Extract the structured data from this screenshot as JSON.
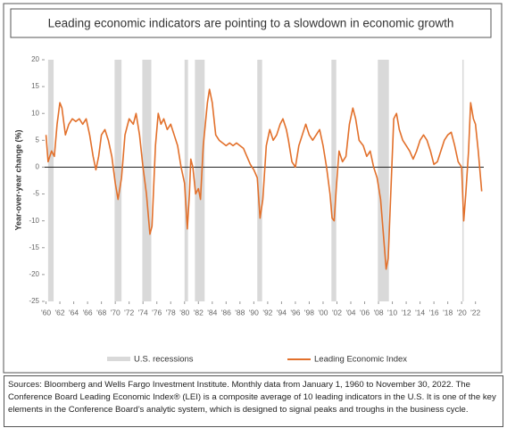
{
  "chart_data": {
    "type": "line",
    "title": "Leading economic indicators are pointing to a slowdown in economic growth",
    "y_label": "Year-over-year change (%)",
    "xlim": [
      1959.8,
      2023.2
    ],
    "ylim": [
      -25,
      20
    ],
    "yticks": [
      20,
      15,
      10,
      5,
      0,
      -5,
      -10,
      -15,
      -20,
      -25
    ],
    "xticks": [
      {
        "value": 1960,
        "label": "'60"
      },
      {
        "value": 1962,
        "label": "'62"
      },
      {
        "value": 1964,
        "label": "'64"
      },
      {
        "value": 1966,
        "label": "'66"
      },
      {
        "value": 1968,
        "label": "'68"
      },
      {
        "value": 1970,
        "label": "'70"
      },
      {
        "value": 1972,
        "label": "'72"
      },
      {
        "value": 1974,
        "label": "'74"
      },
      {
        "value": 1976,
        "label": "'76"
      },
      {
        "value": 1978,
        "label": "'78"
      },
      {
        "value": 1980,
        "label": "'80"
      },
      {
        "value": 1982,
        "label": "'82"
      },
      {
        "value": 1984,
        "label": "'84"
      },
      {
        "value": 1986,
        "label": "'86"
      },
      {
        "value": 1988,
        "label": "'88"
      },
      {
        "value": 1990,
        "label": "'90"
      },
      {
        "value": 1992,
        "label": "'92"
      },
      {
        "value": 1994,
        "label": "'94"
      },
      {
        "value": 1996,
        "label": "'96"
      },
      {
        "value": 1998,
        "label": "'98"
      },
      {
        "value": 2000,
        "label": "'00"
      },
      {
        "value": 2002,
        "label": "'02"
      },
      {
        "value": 2004,
        "label": "'04"
      },
      {
        "value": 2006,
        "label": "'06"
      },
      {
        "value": 2008,
        "label": "'08"
      },
      {
        "value": 2010,
        "label": "'10"
      },
      {
        "value": 2012,
        "label": "'12"
      },
      {
        "value": 2014,
        "label": "'14"
      },
      {
        "value": 2016,
        "label": "'16"
      },
      {
        "value": 2018,
        "label": "'18"
      },
      {
        "value": 2020,
        "label": "'20"
      },
      {
        "value": 2022,
        "label": "'22"
      }
    ],
    "recessions": {
      "name": "U.S. recessions",
      "color": "#d9d9d9",
      "spans": [
        [
          1960.3,
          1961.1
        ],
        [
          1969.9,
          1970.9
        ],
        [
          1973.9,
          1975.2
        ],
        [
          1980.0,
          1980.5
        ],
        [
          1981.5,
          1982.9
        ],
        [
          1990.5,
          1991.2
        ],
        [
          2001.2,
          2001.9
        ],
        [
          2007.9,
          2009.5
        ],
        [
          2020.1,
          2020.3
        ]
      ]
    },
    "x": [
      1960.0,
      1960.3,
      1960.8,
      1961.2,
      1961.6,
      1962.0,
      1962.3,
      1962.8,
      1963.3,
      1963.8,
      1964.3,
      1964.8,
      1965.3,
      1965.8,
      1966.3,
      1966.8,
      1967.2,
      1967.6,
      1968.0,
      1968.5,
      1969.0,
      1969.5,
      1970.0,
      1970.4,
      1970.9,
      1971.4,
      1972.0,
      1972.6,
      1973.0,
      1973.5,
      1974.0,
      1974.5,
      1975.0,
      1975.3,
      1975.8,
      1976.2,
      1976.6,
      1977.0,
      1977.5,
      1978.0,
      1978.5,
      1979.0,
      1979.5,
      1980.0,
      1980.4,
      1980.7,
      1980.9,
      1981.2,
      1981.6,
      1982.0,
      1982.3,
      1982.7,
      1983.3,
      1983.6,
      1984.0,
      1984.5,
      1985.0,
      1985.5,
      1986.0,
      1986.5,
      1987.0,
      1987.5,
      1988.0,
      1988.5,
      1989.0,
      1989.5,
      1990.0,
      1990.5,
      1990.9,
      1991.3,
      1991.8,
      1992.3,
      1992.8,
      1993.3,
      1993.8,
      1994.2,
      1994.7,
      1995.0,
      1995.5,
      1996.0,
      1996.5,
      1997.0,
      1997.5,
      1998.0,
      1998.5,
      1999.0,
      1999.5,
      2000.0,
      2000.5,
      2001.0,
      2001.3,
      2001.6,
      2001.9,
      2002.3,
      2002.8,
      2003.3,
      2003.8,
      2004.3,
      2004.7,
      2005.2,
      2005.8,
      2006.3,
      2006.8,
      2007.3,
      2007.8,
      2008.3,
      2008.8,
      2009.1,
      2009.4,
      2009.8,
      2010.2,
      2010.6,
      2011.0,
      2011.5,
      2012.0,
      2012.5,
      2013.0,
      2013.5,
      2014.0,
      2014.5,
      2015.0,
      2015.5,
      2016.0,
      2016.5,
      2017.0,
      2017.5,
      2018.0,
      2018.5,
      2019.0,
      2019.5,
      2020.0,
      2020.3,
      2020.6,
      2021.0,
      2021.3,
      2021.7,
      2022.0,
      2022.4,
      2022.9
    ],
    "series": [
      {
        "name": "Leading Economic Index",
        "color": "#e2702b",
        "values": [
          6,
          1,
          3,
          2,
          8,
          12,
          11,
          6,
          8,
          9,
          8.5,
          9,
          8,
          9,
          6,
          2,
          -0.5,
          2,
          6,
          7,
          5,
          2,
          -3,
          -6,
          -2,
          6,
          9,
          8,
          10,
          6,
          0,
          -5,
          -12.5,
          -11,
          4,
          10,
          8,
          9,
          7,
          8,
          6,
          4,
          0,
          -3,
          -11.5,
          -5,
          1.5,
          0,
          -5,
          -4,
          -6,
          4,
          12,
          14.5,
          12,
          6,
          5,
          4.5,
          4,
          4.5,
          4,
          4.5,
          4,
          3.5,
          2,
          0.5,
          -0.5,
          -2,
          -9.5,
          -6,
          4,
          7,
          5,
          6,
          8,
          9,
          7,
          5,
          1,
          0,
          4,
          6,
          8,
          6,
          5,
          6,
          7,
          4,
          0,
          -5,
          -9.5,
          -10,
          -4,
          3,
          1,
          2,
          8,
          11,
          9,
          5,
          4,
          2,
          3,
          0,
          -2,
          -6,
          -14,
          -19,
          -17,
          -4,
          9,
          10,
          7,
          5,
          4,
          3,
          1.5,
          3,
          5,
          6,
          5,
          3,
          0.5,
          1,
          3,
          5,
          6,
          6.5,
          4,
          1,
          0,
          -10,
          -5,
          3,
          12,
          9,
          8,
          3,
          -4.5
        ]
      }
    ]
  },
  "source": "Sources: Bloomberg and Wells Fargo Investment Institute. Monthly data from January 1, 1960 to November 30, 2022. The Conference Board Leading Economic Index® (LEI) is a composite average of 10 leading indicators in the U.S. It is one of the key elements in the Conference Board’s analytic system, which is designed to signal peaks and troughs in the business cycle."
}
